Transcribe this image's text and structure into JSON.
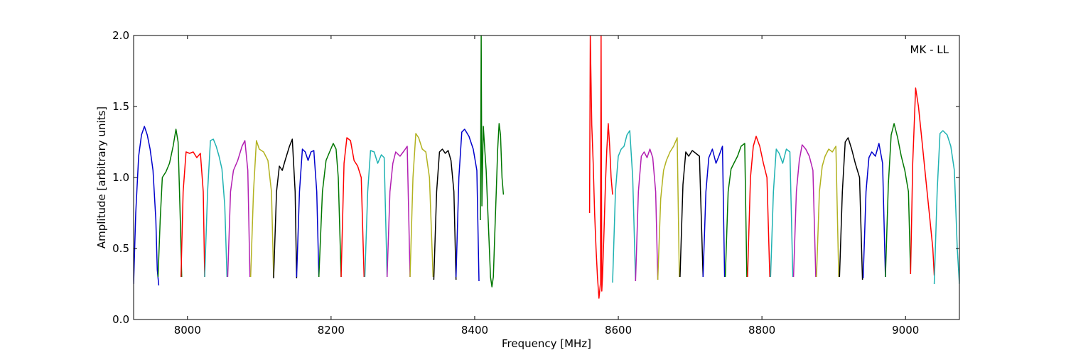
{
  "chart_data": {
    "type": "line",
    "title": "",
    "annotation": "MK - LL",
    "xlabel": "Frequency [MHz]",
    "ylabel": "Amplitude [arbitrary units]",
    "xlim": [
      7925,
      9075
    ],
    "ylim": [
      0.0,
      2.0
    ],
    "xticks": [
      8000,
      8200,
      8400,
      8600,
      8800,
      9000
    ],
    "yticks": [
      0.0,
      0.5,
      1.0,
      1.5,
      2.0
    ],
    "xtick_labels": [
      "8000",
      "8200",
      "8400",
      "8600",
      "8800",
      "9000"
    ],
    "ytick_labels": [
      "0.0",
      "0.5",
      "1.0",
      "1.5",
      "2.0"
    ],
    "grid": false,
    "colors": {
      "blue": "#0000cc",
      "green": "#007700",
      "red": "#ff0000",
      "cyan": "#1fb2b2",
      "magenta": "#b21fb2",
      "olive": "#b2b21f",
      "black": "#000000"
    },
    "series": [
      {
        "color": "blue",
        "x": [
          7925,
          7928,
          7932,
          7936,
          7940,
          7944,
          7948,
          7952,
          7956,
          7958,
          7960
        ],
        "y": [
          0.25,
          0.75,
          1.15,
          1.3,
          1.36,
          1.3,
          1.2,
          1.05,
          0.7,
          0.35,
          0.24
        ]
      },
      {
        "color": "green",
        "x": [
          7959,
          7962,
          7965,
          7970,
          7975,
          7980,
          7984,
          7987,
          7990,
          7992
        ],
        "y": [
          0.3,
          0.7,
          1.0,
          1.04,
          1.1,
          1.22,
          1.34,
          1.25,
          0.7,
          0.3
        ]
      },
      {
        "color": "red",
        "x": [
          7991,
          7994,
          7998,
          8003,
          8008,
          8013,
          8018,
          8022,
          8024
        ],
        "y": [
          0.3,
          0.9,
          1.18,
          1.17,
          1.18,
          1.14,
          1.17,
          0.9,
          0.3
        ]
      },
      {
        "color": "cyan",
        "x": [
          8024,
          8028,
          8032,
          8036,
          8040,
          8044,
          8048,
          8052,
          8055
        ],
        "y": [
          0.3,
          0.9,
          1.26,
          1.27,
          1.22,
          1.15,
          1.06,
          0.8,
          0.3
        ]
      },
      {
        "color": "magenta",
        "x": [
          8056,
          8060,
          8064,
          8070,
          8076,
          8080,
          8084,
          8087
        ],
        "y": [
          0.3,
          0.9,
          1.05,
          1.12,
          1.22,
          1.26,
          1.05,
          0.3
        ]
      },
      {
        "color": "olive",
        "x": [
          8088,
          8092,
          8096,
          8100,
          8106,
          8112,
          8117,
          8120
        ],
        "y": [
          0.3,
          0.9,
          1.26,
          1.2,
          1.18,
          1.12,
          0.9,
          0.3
        ]
      },
      {
        "color": "black",
        "x": [
          8120,
          8124,
          8128,
          8132,
          8136,
          8142,
          8146,
          8150,
          8152
        ],
        "y": [
          0.29,
          0.9,
          1.08,
          1.05,
          1.12,
          1.22,
          1.27,
          0.9,
          0.29
        ]
      },
      {
        "color": "blue",
        "x": [
          8152,
          8156,
          8160,
          8164,
          8168,
          8172,
          8176,
          8180,
          8183
        ],
        "y": [
          0.3,
          0.9,
          1.2,
          1.18,
          1.12,
          1.18,
          1.19,
          0.9,
          0.3
        ]
      },
      {
        "color": "green",
        "x": [
          8183,
          8188,
          8193,
          8198,
          8203,
          8207,
          8210,
          8214
        ],
        "y": [
          0.3,
          0.9,
          1.12,
          1.18,
          1.24,
          1.2,
          1.0,
          0.3
        ]
      },
      {
        "color": "red",
        "x": [
          8214,
          8218,
          8222,
          8227,
          8232,
          8237,
          8242,
          8246
        ],
        "y": [
          0.3,
          1.1,
          1.28,
          1.26,
          1.12,
          1.08,
          1.0,
          0.3
        ]
      },
      {
        "color": "cyan",
        "x": [
          8247,
          8251,
          8255,
          8260,
          8265,
          8270,
          8274,
          8278
        ],
        "y": [
          0.3,
          0.9,
          1.19,
          1.18,
          1.1,
          1.16,
          1.14,
          0.3
        ]
      },
      {
        "color": "magenta",
        "x": [
          8278,
          8282,
          8286,
          8290,
          8296,
          8302,
          8306,
          8310
        ],
        "y": [
          0.3,
          0.9,
          1.1,
          1.18,
          1.15,
          1.19,
          1.22,
          0.3
        ]
      },
      {
        "color": "olive",
        "x": [
          8310,
          8314,
          8318,
          8322,
          8327,
          8332,
          8337,
          8342
        ],
        "y": [
          0.3,
          1.0,
          1.31,
          1.28,
          1.2,
          1.18,
          1.0,
          0.3
        ]
      },
      {
        "color": "black",
        "x": [
          8343,
          8347,
          8351,
          8355,
          8359,
          8363,
          8367,
          8371,
          8374
        ],
        "y": [
          0.28,
          0.9,
          1.18,
          1.2,
          1.17,
          1.19,
          1.12,
          0.9,
          0.28
        ]
      },
      {
        "color": "blue",
        "x": [
          8374,
          8378,
          8382,
          8386,
          8392,
          8398,
          8403,
          8406
        ],
        "y": [
          0.3,
          1.0,
          1.32,
          1.34,
          1.29,
          1.2,
          1.05,
          0.27
        ]
      },
      {
        "color": "green",
        "x": [
          8408,
          8409,
          8410,
          8411,
          8412,
          8414,
          8416,
          8418,
          8420,
          8422,
          8424,
          8426,
          8428,
          8430,
          8432,
          8434,
          8436,
          8438,
          8440
        ],
        "y": [
          0.7,
          2.0,
          0.8,
          1.1,
          1.36,
          1.2,
          1.05,
          0.8,
          0.55,
          0.3,
          0.23,
          0.3,
          0.6,
          0.9,
          1.2,
          1.38,
          1.3,
          1.0,
          0.88
        ]
      },
      {
        "color": "red",
        "x": [
          8560,
          8561,
          8563,
          8565,
          8567,
          8569,
          8571,
          8573,
          8575,
          8576,
          8577,
          8578,
          8580,
          8582,
          8584,
          8586,
          8588,
          8590,
          8592
        ],
        "y": [
          0.75,
          2.0,
          1.37,
          1.1,
          0.75,
          0.5,
          0.3,
          0.15,
          0.25,
          2.0,
          0.2,
          0.3,
          0.6,
          0.95,
          1.2,
          1.38,
          1.22,
          1.0,
          0.88
        ]
      },
      {
        "color": "cyan",
        "x": [
          8592,
          8596,
          8600,
          8604,
          8608,
          8612,
          8616,
          8620,
          8624
        ],
        "y": [
          0.26,
          0.9,
          1.15,
          1.2,
          1.22,
          1.3,
          1.33,
          1.0,
          0.27
        ]
      },
      {
        "color": "magenta",
        "x": [
          8624,
          8628,
          8632,
          8636,
          8640,
          8644,
          8648,
          8652,
          8655
        ],
        "y": [
          0.27,
          0.9,
          1.15,
          1.18,
          1.14,
          1.2,
          1.14,
          0.9,
          0.28
        ]
      },
      {
        "color": "olive",
        "x": [
          8655,
          8659,
          8663,
          8667,
          8672,
          8677,
          8682,
          8685
        ],
        "y": [
          0.28,
          0.85,
          1.05,
          1.12,
          1.18,
          1.22,
          1.28,
          0.3
        ]
      },
      {
        "color": "black",
        "x": [
          8686,
          8690,
          8694,
          8698,
          8703,
          8708,
          8713,
          8718
        ],
        "y": [
          0.3,
          0.95,
          1.18,
          1.15,
          1.19,
          1.17,
          1.15,
          0.3
        ]
      },
      {
        "color": "blue",
        "x": [
          8718,
          8722,
          8726,
          8731,
          8736,
          8740,
          8745,
          8748
        ],
        "y": [
          0.3,
          0.9,
          1.14,
          1.2,
          1.1,
          1.15,
          1.22,
          0.3
        ]
      },
      {
        "color": "green",
        "x": [
          8749,
          8753,
          8757,
          8761,
          8766,
          8771,
          8776,
          8779
        ],
        "y": [
          0.3,
          0.9,
          1.06,
          1.1,
          1.15,
          1.22,
          1.24,
          0.3
        ]
      },
      {
        "color": "red",
        "x": [
          8780,
          8784,
          8788,
          8792,
          8797,
          8802,
          8807,
          8811
        ],
        "y": [
          0.3,
          1.0,
          1.22,
          1.29,
          1.22,
          1.1,
          1.0,
          0.3
        ]
      },
      {
        "color": "cyan",
        "x": [
          8812,
          8816,
          8820,
          8824,
          8829,
          8834,
          8839,
          8843
        ],
        "y": [
          0.3,
          0.9,
          1.2,
          1.17,
          1.1,
          1.2,
          1.18,
          0.3
        ]
      },
      {
        "color": "magenta",
        "x": [
          8844,
          8848,
          8852,
          8856,
          8861,
          8866,
          8871,
          8875
        ],
        "y": [
          0.3,
          0.9,
          1.12,
          1.23,
          1.2,
          1.15,
          1.05,
          0.3
        ]
      },
      {
        "color": "olive",
        "x": [
          8876,
          8880,
          8884,
          8888,
          8893,
          8898,
          8903,
          8907
        ],
        "y": [
          0.3,
          0.9,
          1.08,
          1.15,
          1.2,
          1.18,
          1.22,
          0.3
        ]
      },
      {
        "color": "black",
        "x": [
          8908,
          8912,
          8916,
          8920,
          8925,
          8930,
          8936,
          8940
        ],
        "y": [
          0.3,
          0.9,
          1.25,
          1.28,
          1.2,
          1.1,
          1.0,
          0.28
        ]
      },
      {
        "color": "blue",
        "x": [
          8941,
          8945,
          8949,
          8953,
          8958,
          8963,
          8968,
          8972
        ],
        "y": [
          0.29,
          0.9,
          1.14,
          1.18,
          1.15,
          1.24,
          1.1,
          0.3
        ]
      },
      {
        "color": "green",
        "x": [
          8972,
          8976,
          8980,
          8984,
          8989,
          8994,
          8999,
          9004,
          9007
        ],
        "y": [
          0.3,
          0.95,
          1.3,
          1.38,
          1.28,
          1.15,
          1.05,
          0.9,
          0.32
        ]
      },
      {
        "color": "red",
        "x": [
          9007,
          9010,
          9014,
          9018,
          9023,
          9028,
          9033,
          9038,
          9040
        ],
        "y": [
          0.32,
          1.1,
          1.63,
          1.5,
          1.25,
          1.0,
          0.75,
          0.5,
          0.31
        ]
      },
      {
        "color": "cyan",
        "x": [
          9040,
          9044,
          9048,
          9052,
          9058,
          9063,
          9068,
          9072,
          9075
        ],
        "y": [
          0.25,
          0.9,
          1.31,
          1.33,
          1.3,
          1.22,
          1.05,
          0.5,
          0.25
        ]
      }
    ]
  }
}
